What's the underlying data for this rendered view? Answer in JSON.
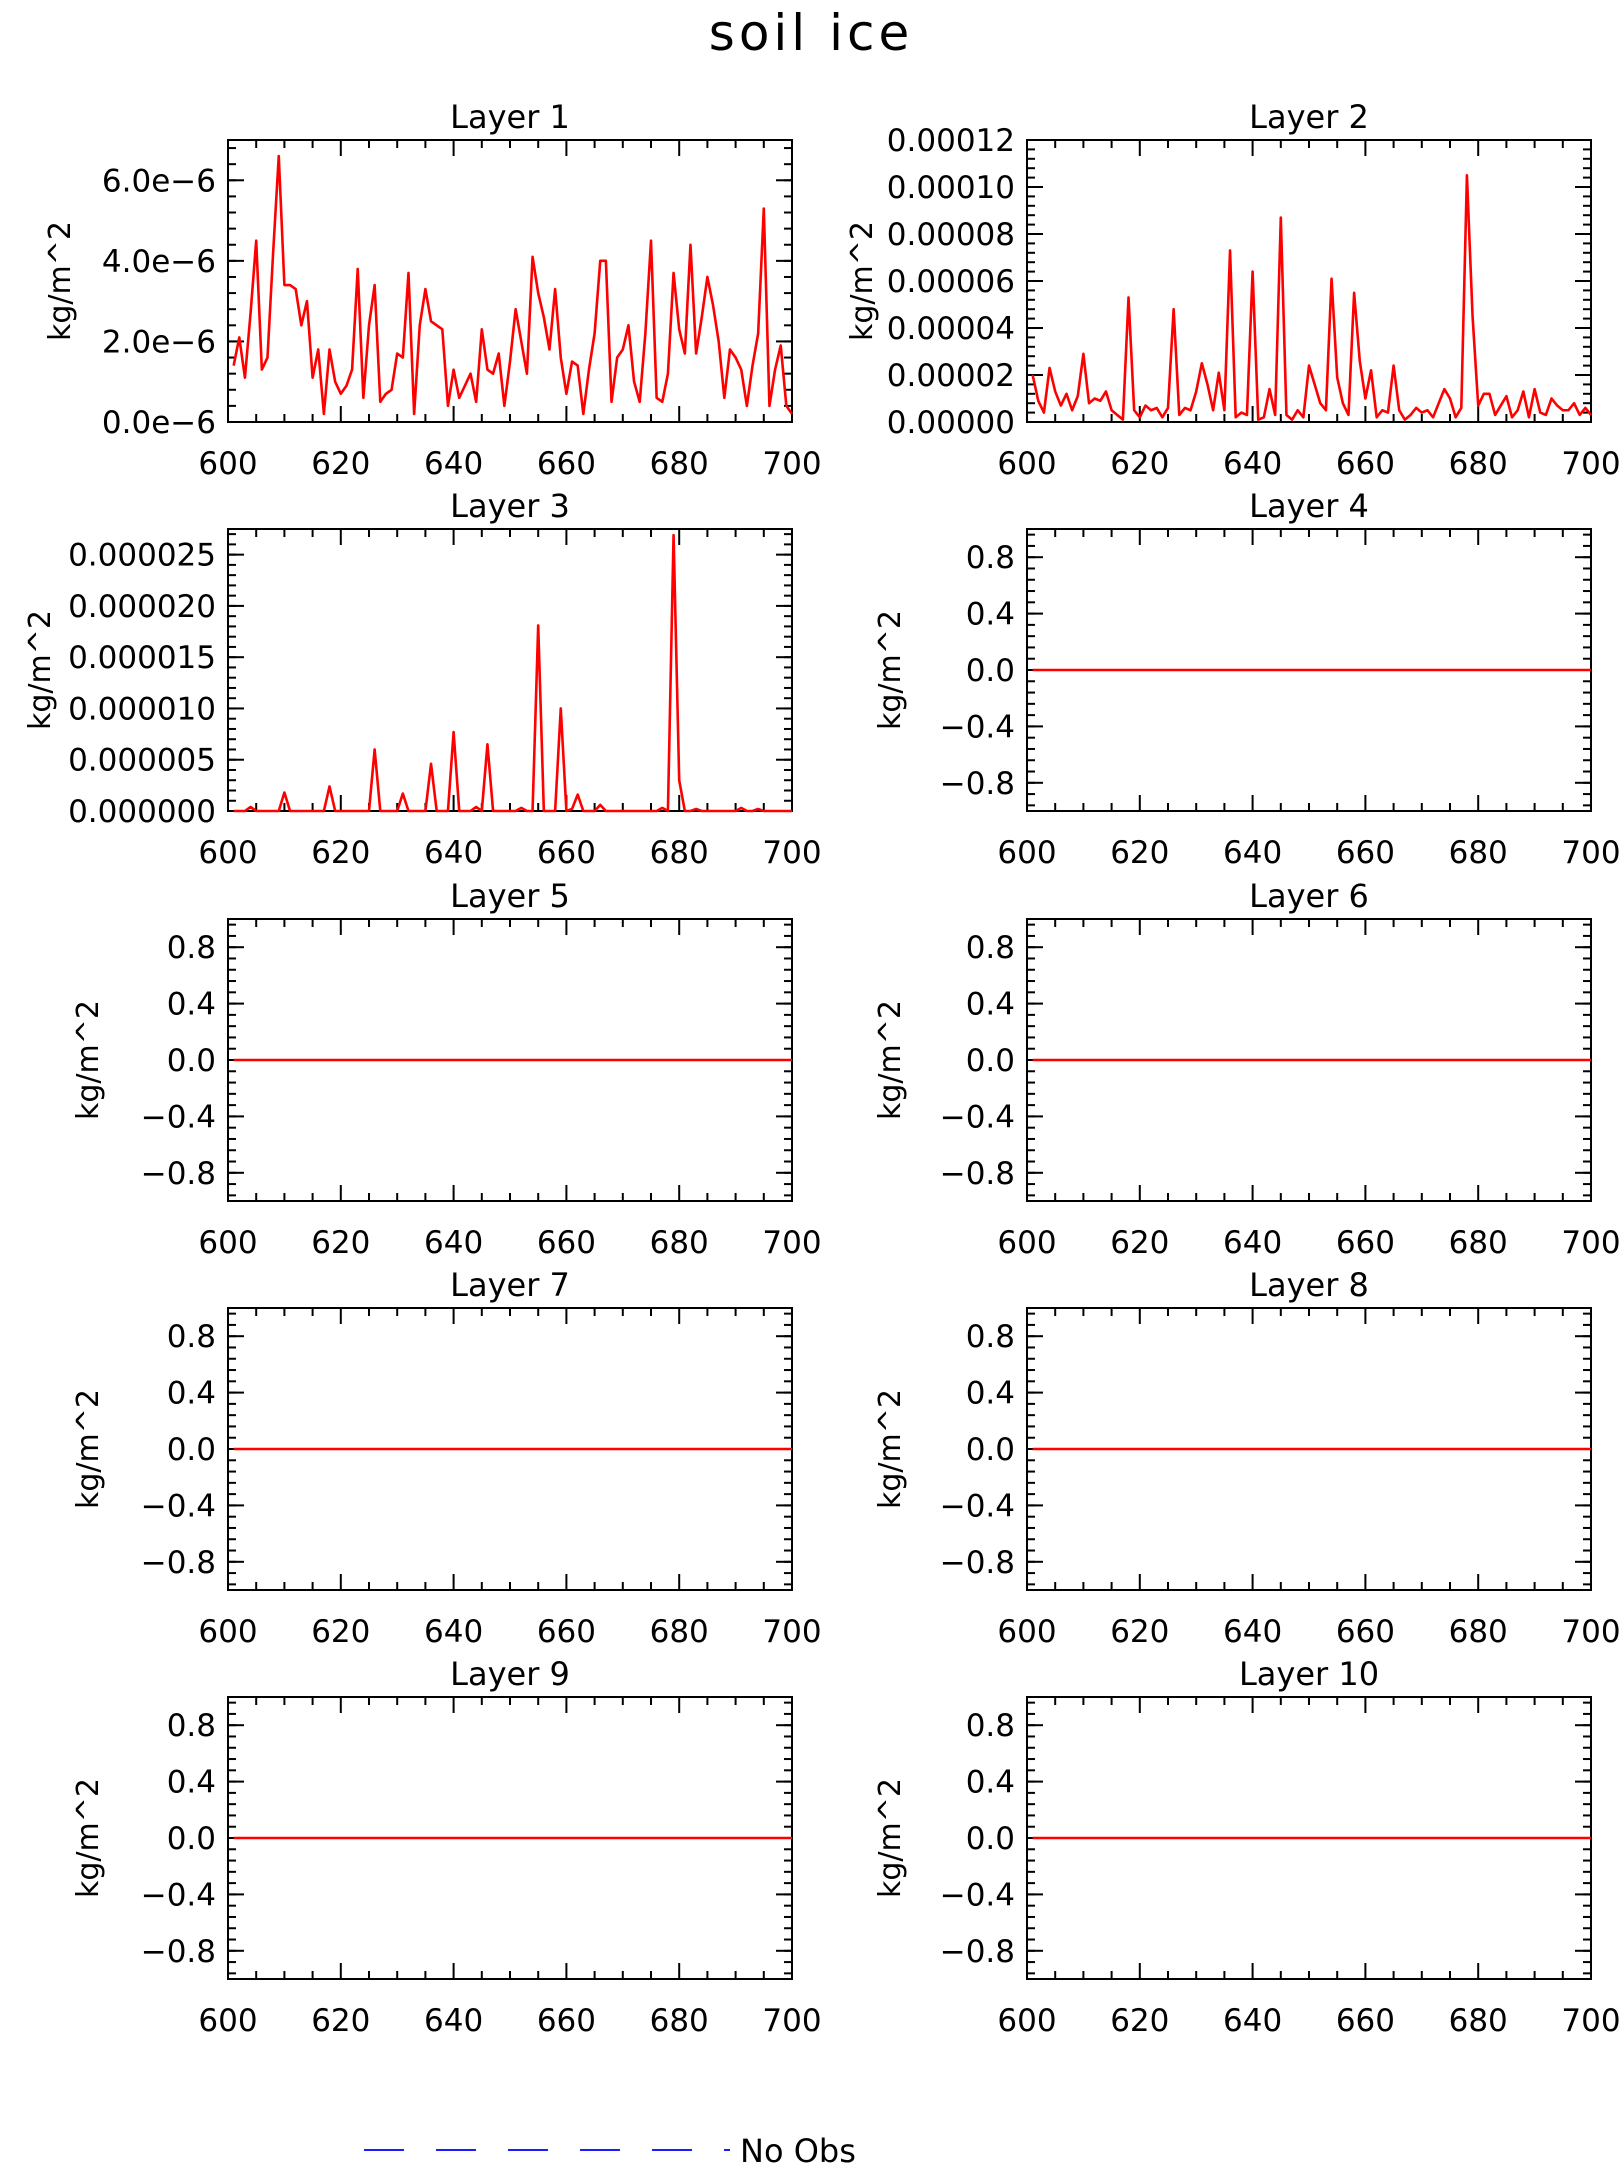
{
  "figure": {
    "title": "soil ice",
    "legend": {
      "label": "No Obs",
      "line_color": "#1a1aff",
      "line_style": "dashed"
    },
    "colors": {
      "series": "#ff0000",
      "axis": "#000000"
    }
  },
  "chart_data": [
    {
      "type": "line",
      "title": "Layer 1",
      "ylabel": "kg/m^2",
      "xlim": [
        600,
        700
      ],
      "ylim": [
        0,
        7e-06
      ],
      "xticks": [
        "600",
        "620",
        "640",
        "660",
        "680",
        "700"
      ],
      "yticks": [
        {
          "v": 0,
          "label": "0.0e−6"
        },
        {
          "v": 2e-06,
          "label": "2.0e−6"
        },
        {
          "v": 4e-06,
          "label": "4.0e−6"
        },
        {
          "v": 6e-06,
          "label": "6.0e−6"
        }
      ],
      "x_start": 601,
      "series": [
        {
          "values": [
            1.4e-06,
            2.1e-06,
            1.1e-06,
            2.7e-06,
            4.5e-06,
            1.3e-06,
            1.6e-06,
            4.2e-06,
            6.6e-06,
            3.4e-06,
            3.4e-06,
            3.3e-06,
            2.4e-06,
            3e-06,
            1.1e-06,
            1.8e-06,
            2e-07,
            1.8e-06,
            1e-06,
            7e-07,
            9e-07,
            1.3e-06,
            3.8e-06,
            6e-07,
            2.4e-06,
            3.4e-06,
            5e-07,
            7e-07,
            8e-07,
            1.7e-06,
            1.6e-06,
            3.7e-06,
            2e-07,
            2.4e-06,
            3.3e-06,
            2.5e-06,
            2.4e-06,
            2.3e-06,
            4e-07,
            1.3e-06,
            6e-07,
            9e-07,
            1.2e-06,
            5e-07,
            2.3e-06,
            1.3e-06,
            1.2e-06,
            1.7e-06,
            4e-07,
            1.5e-06,
            2.8e-06,
            2e-06,
            1.2e-06,
            4.1e-06,
            3.2e-06,
            2.6e-06,
            1.8e-06,
            3.3e-06,
            1.6e-06,
            7e-07,
            1.5e-06,
            1.4e-06,
            2e-07,
            1.3e-06,
            2.2e-06,
            4e-06,
            4e-06,
            5e-07,
            1.6e-06,
            1.8e-06,
            2.4e-06,
            1e-06,
            5e-07,
            2.2e-06,
            4.5e-06,
            6e-07,
            5e-07,
            1.2e-06,
            3.7e-06,
            2.3e-06,
            1.7e-06,
            4.4e-06,
            1.7e-06,
            2.6e-06,
            3.6e-06,
            2.9e-06,
            2e-06,
            6e-07,
            1.8e-06,
            1.6e-06,
            1.3e-06,
            4e-07,
            1.4e-06,
            2.2e-06,
            5.3e-06,
            4e-07,
            1.3e-06,
            1.9e-06,
            4e-07,
            2e-07
          ]
        }
      ]
    },
    {
      "type": "line",
      "title": "Layer 2",
      "ylabel": "kg/m^2",
      "xlim": [
        600,
        700
      ],
      "ylim": [
        0,
        0.00012
      ],
      "xticks": [
        "600",
        "620",
        "640",
        "660",
        "680",
        "700"
      ],
      "yticks": [
        {
          "v": 0,
          "label": "0.00000"
        },
        {
          "v": 2e-05,
          "label": "0.00002"
        },
        {
          "v": 4e-05,
          "label": "0.00004"
        },
        {
          "v": 6e-05,
          "label": "0.00006"
        },
        {
          "v": 8e-05,
          "label": "0.00008"
        },
        {
          "v": 0.0001,
          "label": "0.00010"
        },
        {
          "v": 0.00012,
          "label": "0.00012"
        }
      ],
      "x_start": 601,
      "series": [
        {
          "values": [
            2e-05,
            9e-06,
            4e-06,
            2.3e-05,
            1.3e-05,
            7e-06,
            1.2e-05,
            5e-06,
            1.1e-05,
            2.9e-05,
            8e-06,
            1e-05,
            9e-06,
            1.3e-05,
            5e-06,
            3e-06,
            1e-06,
            5.3e-05,
            5e-06,
            2e-06,
            7e-06,
            5e-06,
            6e-06,
            2e-06,
            6e-06,
            4.8e-05,
            3e-06,
            6e-06,
            5e-06,
            1.3e-05,
            2.5e-05,
            1.6e-05,
            5e-06,
            2.1e-05,
            5e-06,
            7.3e-05,
            2e-06,
            4e-06,
            3e-06,
            6.4e-05,
            1e-06,
            2e-06,
            1.4e-05,
            3e-06,
            8.7e-05,
            3e-06,
            1e-06,
            5e-06,
            2e-06,
            2.4e-05,
            1.6e-05,
            8e-06,
            5e-06,
            6.1e-05,
            1.9e-05,
            8e-06,
            3e-06,
            5.5e-05,
            2.6e-05,
            1e-05,
            2.2e-05,
            2e-06,
            5e-06,
            4e-06,
            2.4e-05,
            5e-06,
            1e-06,
            3e-06,
            6e-06,
            4e-06,
            5e-06,
            2e-06,
            8e-06,
            1.4e-05,
            1e-05,
            2e-06,
            6e-06,
            0.000105,
            4.5e-05,
            7e-06,
            1.2e-05,
            1.2e-05,
            3e-06,
            7e-06,
            1.1e-05,
            2e-06,
            5e-06,
            1.3e-05,
            2e-06,
            1.4e-05,
            4e-06,
            3e-06,
            1e-05,
            7e-06,
            5e-06,
            5e-06,
            8e-06,
            3e-06,
            6e-06,
            3e-06
          ]
        }
      ]
    },
    {
      "type": "line",
      "title": "Layer 3",
      "ylabel": "kg/m^2",
      "xlim": [
        600,
        700
      ],
      "ylim": [
        0,
        2.75e-05
      ],
      "xticks": [
        "600",
        "620",
        "640",
        "660",
        "680",
        "700"
      ],
      "yticks": [
        {
          "v": 0,
          "label": "0.000000"
        },
        {
          "v": 5e-06,
          "label": "0.000005"
        },
        {
          "v": 1e-05,
          "label": "0.000010"
        },
        {
          "v": 1.5e-05,
          "label": "0.000015"
        },
        {
          "v": 2e-05,
          "label": "0.000020"
        },
        {
          "v": 2.5e-05,
          "label": "0.000025"
        }
      ],
      "x_start": 601,
      "series": [
        {
          "values": [
            0,
            0,
            0,
            4e-07,
            0,
            0,
            0,
            0,
            0,
            1.8e-06,
            0,
            0,
            0,
            0,
            0,
            0,
            0,
            2.4e-06,
            0,
            0,
            0,
            0,
            0,
            0,
            0,
            6e-06,
            0,
            0,
            0,
            0,
            1.7e-06,
            0,
            0,
            0,
            0,
            4.6e-06,
            0,
            0,
            0,
            7.7e-06,
            0,
            0,
            0,
            4e-07,
            0,
            6.5e-06,
            0,
            0,
            0,
            0,
            0,
            3e-07,
            0,
            0,
            1.81e-05,
            0,
            0,
            0,
            1e-05,
            0,
            2e-07,
            1.6e-06,
            0,
            0,
            0,
            6e-07,
            0,
            0,
            0,
            0,
            0,
            0,
            0,
            0,
            0,
            0,
            3e-07,
            0,
            2.69e-05,
            3e-06,
            0,
            0,
            2e-07,
            0,
            0,
            0,
            0,
            0,
            0,
            0,
            3e-07,
            0,
            0,
            2e-07,
            0,
            0,
            0,
            0,
            0,
            0
          ]
        }
      ]
    },
    {
      "type": "line",
      "title": "Layer 4",
      "ylabel": "kg/m^2",
      "xlim": [
        600,
        700
      ],
      "ylim": [
        -1,
        1
      ],
      "xticks": [
        "600",
        "620",
        "640",
        "660",
        "680",
        "700"
      ],
      "yticks": [
        {
          "v": -0.8,
          "label": "−0.8"
        },
        {
          "v": -0.4,
          "label": "−0.4"
        },
        {
          "v": 0,
          "label": "0.0"
        },
        {
          "v": 0.4,
          "label": "0.4"
        },
        {
          "v": 0.8,
          "label": "0.8"
        }
      ],
      "x_start": 601,
      "series": [
        {
          "constant": 0,
          "count": 100
        }
      ]
    },
    {
      "type": "line",
      "title": "Layer 5",
      "ylabel": "kg/m^2",
      "xlim": [
        600,
        700
      ],
      "ylim": [
        -1,
        1
      ],
      "xticks": [
        "600",
        "620",
        "640",
        "660",
        "680",
        "700"
      ],
      "yticks": [
        {
          "v": -0.8,
          "label": "−0.8"
        },
        {
          "v": -0.4,
          "label": "−0.4"
        },
        {
          "v": 0,
          "label": "0.0"
        },
        {
          "v": 0.4,
          "label": "0.4"
        },
        {
          "v": 0.8,
          "label": "0.8"
        }
      ],
      "x_start": 601,
      "series": [
        {
          "constant": 0,
          "count": 100
        }
      ]
    },
    {
      "type": "line",
      "title": "Layer 6",
      "ylabel": "kg/m^2",
      "xlim": [
        600,
        700
      ],
      "ylim": [
        -1,
        1
      ],
      "xticks": [
        "600",
        "620",
        "640",
        "660",
        "680",
        "700"
      ],
      "yticks": [
        {
          "v": -0.8,
          "label": "−0.8"
        },
        {
          "v": -0.4,
          "label": "−0.4"
        },
        {
          "v": 0,
          "label": "0.0"
        },
        {
          "v": 0.4,
          "label": "0.4"
        },
        {
          "v": 0.8,
          "label": "0.8"
        }
      ],
      "x_start": 601,
      "series": [
        {
          "constant": 0,
          "count": 100
        }
      ]
    },
    {
      "type": "line",
      "title": "Layer 7",
      "ylabel": "kg/m^2",
      "xlim": [
        600,
        700
      ],
      "ylim": [
        -1,
        1
      ],
      "xticks": [
        "600",
        "620",
        "640",
        "660",
        "680",
        "700"
      ],
      "yticks": [
        {
          "v": -0.8,
          "label": "−0.8"
        },
        {
          "v": -0.4,
          "label": "−0.4"
        },
        {
          "v": 0,
          "label": "0.0"
        },
        {
          "v": 0.4,
          "label": "0.4"
        },
        {
          "v": 0.8,
          "label": "0.8"
        }
      ],
      "x_start": 601,
      "series": [
        {
          "constant": 0,
          "count": 100
        }
      ]
    },
    {
      "type": "line",
      "title": "Layer 8",
      "ylabel": "kg/m^2",
      "xlim": [
        600,
        700
      ],
      "ylim": [
        -1,
        1
      ],
      "xticks": [
        "600",
        "620",
        "640",
        "660",
        "680",
        "700"
      ],
      "yticks": [
        {
          "v": -0.8,
          "label": "−0.8"
        },
        {
          "v": -0.4,
          "label": "−0.4"
        },
        {
          "v": 0,
          "label": "0.0"
        },
        {
          "v": 0.4,
          "label": "0.4"
        },
        {
          "v": 0.8,
          "label": "0.8"
        }
      ],
      "x_start": 601,
      "series": [
        {
          "constant": 0,
          "count": 100
        }
      ]
    },
    {
      "type": "line",
      "title": "Layer 9",
      "ylabel": "kg/m^2",
      "xlim": [
        600,
        700
      ],
      "ylim": [
        -1,
        1
      ],
      "xticks": [
        "600",
        "620",
        "640",
        "660",
        "680",
        "700"
      ],
      "yticks": [
        {
          "v": -0.8,
          "label": "−0.8"
        },
        {
          "v": -0.4,
          "label": "−0.4"
        },
        {
          "v": 0,
          "label": "0.0"
        },
        {
          "v": 0.4,
          "label": "0.4"
        },
        {
          "v": 0.8,
          "label": "0.8"
        }
      ],
      "x_start": 601,
      "series": [
        {
          "constant": 0,
          "count": 100
        }
      ]
    },
    {
      "type": "line",
      "title": "Layer 10",
      "ylabel": "kg/m^2",
      "xlim": [
        600,
        700
      ],
      "ylim": [
        -1,
        1
      ],
      "xticks": [
        "600",
        "620",
        "640",
        "660",
        "680",
        "700"
      ],
      "yticks": [
        {
          "v": -0.8,
          "label": "−0.8"
        },
        {
          "v": -0.4,
          "label": "−0.4"
        },
        {
          "v": 0,
          "label": "0.0"
        },
        {
          "v": 0.4,
          "label": "0.4"
        },
        {
          "v": 0.8,
          "label": "0.8"
        }
      ],
      "x_start": 601,
      "series": [
        {
          "constant": 0,
          "count": 100
        }
      ]
    }
  ]
}
